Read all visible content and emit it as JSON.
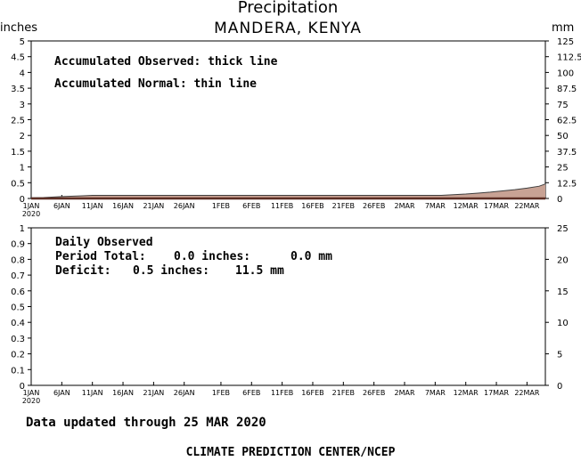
{
  "header": {
    "title": "Precipitation",
    "station": "MANDERA, KENYA",
    "unit_left": "inches",
    "unit_right": "mm"
  },
  "colors": {
    "observed_fill": "#c8a294",
    "observed_line": "#5c2e24",
    "normal_line": "#3f3f3f",
    "axis": "#000000"
  },
  "x_ticks": [
    {
      "label": "1JAN",
      "sub": "2020",
      "day": 0
    },
    {
      "label": "6JAN",
      "day": 5
    },
    {
      "label": "11JAN",
      "day": 10
    },
    {
      "label": "16JAN",
      "day": 15
    },
    {
      "label": "21JAN",
      "day": 20
    },
    {
      "label": "26JAN",
      "day": 25
    },
    {
      "label": "1FEB",
      "day": 31
    },
    {
      "label": "6FEB",
      "day": 36
    },
    {
      "label": "11FEB",
      "day": 41
    },
    {
      "label": "16FEB",
      "day": 46
    },
    {
      "label": "21FEB",
      "day": 51
    },
    {
      "label": "26FEB",
      "day": 56
    },
    {
      "label": "2MAR",
      "day": 61
    },
    {
      "label": "7MAR",
      "day": 66
    },
    {
      "label": "12MAR",
      "day": 71
    },
    {
      "label": "17MAR",
      "day": 76
    },
    {
      "label": "22MAR",
      "day": 81
    }
  ],
  "panels": {
    "accumulated": {
      "annotation_observed": "Accumulated Observed: thick line",
      "annotation_normal": "Accumulated Normal: thin line"
    },
    "daily": {
      "annotation_title": "Daily Observed",
      "period_total_label": "Period Total:",
      "period_total_inches": "0.0 inches:",
      "period_total_mm": "0.0 mm",
      "deficit_label": "Deficit:",
      "deficit_inches": "0.5 inches:",
      "deficit_mm": "11.5 mm"
    }
  },
  "chart_data": [
    {
      "type": "area",
      "title": "Precipitation",
      "subtitle": "MANDERA, KENYA",
      "ylabel": "inches",
      "ylabel_right": "mm",
      "ylim": [
        0,
        5
      ],
      "ylim_right": [
        0,
        125
      ],
      "yticks": [
        "0",
        "0.5",
        "1",
        "1.5",
        "2",
        "2.5",
        "3",
        "3.5",
        "4",
        "4.5",
        "5"
      ],
      "yticks_right": [
        "0",
        "12.5",
        "25",
        "37.5",
        "50",
        "62.5",
        "75",
        "87.5",
        "100",
        "112.5",
        "125"
      ],
      "x_range_days": [
        0,
        84
      ],
      "series": [
        {
          "name": "Accumulated Observed",
          "x": [
            0,
            84
          ],
          "values": [
            0,
            0
          ]
        },
        {
          "name": "Accumulated Normal",
          "x": [
            0,
            2,
            5,
            8,
            10,
            20,
            30,
            40,
            50,
            60,
            67,
            69,
            71,
            73,
            75,
            77,
            79,
            81,
            83,
            84
          ],
          "values": [
            0.02,
            0.03,
            0.06,
            0.08,
            0.1,
            0.1,
            0.1,
            0.1,
            0.1,
            0.1,
            0.1,
            0.12,
            0.14,
            0.17,
            0.2,
            0.24,
            0.28,
            0.33,
            0.39,
            0.46
          ]
        }
      ],
      "grid": false
    },
    {
      "type": "bar",
      "title": "Daily Observed",
      "ylim": [
        0,
        1
      ],
      "ylim_right": [
        0,
        25
      ],
      "yticks": [
        "0",
        "0.1",
        "0.2",
        "0.3",
        "0.4",
        "0.5",
        "0.6",
        "0.7",
        "0.8",
        "0.9",
        "1"
      ],
      "yticks_right": [
        "0",
        "5",
        "10",
        "15",
        "20",
        "25"
      ],
      "x_range_days": [
        0,
        84
      ],
      "series": [
        {
          "name": "Daily Observed",
          "x": [],
          "values": []
        }
      ],
      "grid": false
    }
  ],
  "footer": {
    "updated": "Data updated through 25 MAR 2020",
    "credit": "CLIMATE PREDICTION CENTER/NCEP"
  }
}
